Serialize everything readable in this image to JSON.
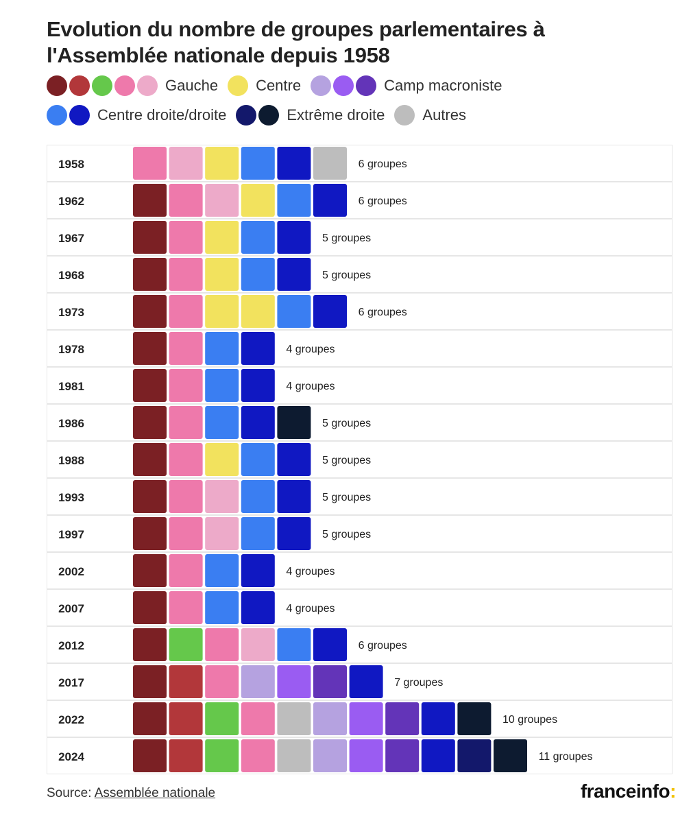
{
  "title": "Evolution du nombre de groupes parlementaires à l'Assemblée nationale depuis 1958",
  "palette": {
    "g1": "#7b2024",
    "g2": "#b2373a",
    "g3": "#65c84b",
    "g4": "#ee79ab",
    "g5": "#edaac9",
    "c": "#f2e25e",
    "m1": "#b5a2e0",
    "m2": "#9a5cf2",
    "m3": "#6334b8",
    "d1": "#3a7ef2",
    "d2": "#1018c2",
    "x1": "#13186b",
    "x2": "#0d1b30",
    "a": "#bdbdbd"
  },
  "legend": [
    {
      "label": "Gauche",
      "keys": [
        "g1",
        "g2",
        "g3",
        "g4",
        "g5"
      ],
      "row": 1
    },
    {
      "label": "Centre",
      "keys": [
        "c"
      ],
      "row": 1
    },
    {
      "label": "Camp macroniste",
      "keys": [
        "m1",
        "m2",
        "m3"
      ],
      "row": 1
    },
    {
      "label": "Centre droite/droite",
      "keys": [
        "d1",
        "d2"
      ],
      "row": 2
    },
    {
      "label": "Extrême droite",
      "keys": [
        "x1",
        "x2"
      ],
      "row": 2
    },
    {
      "label": "Autres",
      "keys": [
        "a"
      ],
      "row": 2
    }
  ],
  "chart_data": {
    "type": "table",
    "rows": [
      {
        "year": "1958",
        "groups": [
          "g4",
          "g5",
          "c",
          "d1",
          "d2",
          "a"
        ],
        "count": 6,
        "label": "6 groupes"
      },
      {
        "year": "1962",
        "groups": [
          "g1",
          "g4",
          "g5",
          "c",
          "d1",
          "d2"
        ],
        "count": 6,
        "label": "6 groupes"
      },
      {
        "year": "1967",
        "groups": [
          "g1",
          "g4",
          "c",
          "d1",
          "d2"
        ],
        "count": 5,
        "label": "5 groupes"
      },
      {
        "year": "1968",
        "groups": [
          "g1",
          "g4",
          "c",
          "d1",
          "d2"
        ],
        "count": 5,
        "label": "5 groupes"
      },
      {
        "year": "1973",
        "groups": [
          "g1",
          "g4",
          "c",
          "c",
          "d1",
          "d2"
        ],
        "count": 6,
        "label": "6 groupes"
      },
      {
        "year": "1978",
        "groups": [
          "g1",
          "g4",
          "d1",
          "d2"
        ],
        "count": 4,
        "label": "4 groupes"
      },
      {
        "year": "1981",
        "groups": [
          "g1",
          "g4",
          "d1",
          "d2"
        ],
        "count": 4,
        "label": "4 groupes"
      },
      {
        "year": "1986",
        "groups": [
          "g1",
          "g4",
          "d1",
          "d2",
          "x2"
        ],
        "count": 5,
        "label": "5 groupes"
      },
      {
        "year": "1988",
        "groups": [
          "g1",
          "g4",
          "c",
          "d1",
          "d2"
        ],
        "count": 5,
        "label": "5 groupes"
      },
      {
        "year": "1993",
        "groups": [
          "g1",
          "g4",
          "g5",
          "d1",
          "d2"
        ],
        "count": 5,
        "label": "5 groupes"
      },
      {
        "year": "1997",
        "groups": [
          "g1",
          "g4",
          "g5",
          "d1",
          "d2"
        ],
        "count": 5,
        "label": "5 groupes"
      },
      {
        "year": "2002",
        "groups": [
          "g1",
          "g4",
          "d1",
          "d2"
        ],
        "count": 4,
        "label": "4 groupes"
      },
      {
        "year": "2007",
        "groups": [
          "g1",
          "g4",
          "d1",
          "d2"
        ],
        "count": 4,
        "label": "4 groupes"
      },
      {
        "year": "2012",
        "groups": [
          "g1",
          "g3",
          "g4",
          "g5",
          "d1",
          "d2"
        ],
        "count": 6,
        "label": "6 groupes"
      },
      {
        "year": "2017",
        "groups": [
          "g1",
          "g2",
          "g4",
          "m1",
          "m2",
          "m3",
          "d2"
        ],
        "count": 7,
        "label": "7 groupes"
      },
      {
        "year": "2022",
        "groups": [
          "g1",
          "g2",
          "g3",
          "g4",
          "a",
          "m1",
          "m2",
          "m3",
          "d2",
          "x2"
        ],
        "count": 10,
        "label": "10 groupes"
      },
      {
        "year": "2024",
        "groups": [
          "g1",
          "g2",
          "g3",
          "g4",
          "a",
          "m1",
          "m2",
          "m3",
          "d2",
          "x1",
          "x2"
        ],
        "count": 11,
        "label": "11 groupes"
      }
    ]
  },
  "source": {
    "prefix": "Source: ",
    "link": "Assemblée nationale"
  },
  "brand": {
    "name": "franceinfo",
    "suffix": ":"
  }
}
